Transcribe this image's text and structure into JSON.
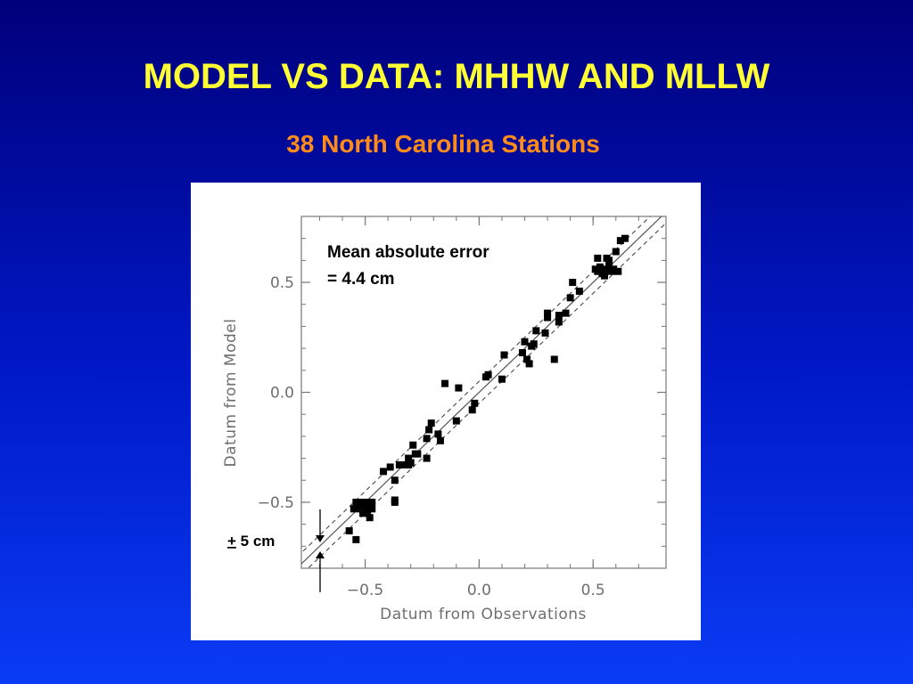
{
  "slide": {
    "title": "MODEL VS DATA: MHHW AND MLLW",
    "subtitle": "38 North Carolina Stations",
    "background_top": "#00007a",
    "background_bottom": "#0a3cf5",
    "title_color": "#ffff33",
    "subtitle_color": "#ff8c1a"
  },
  "chart_data": {
    "type": "scatter",
    "xlabel": "Datum from Observations",
    "ylabel": "Datum from Model",
    "xlim": [
      -0.78,
      0.82
    ],
    "ylim": [
      -0.8,
      0.8
    ],
    "xticks": [
      -0.5,
      0.0,
      0.5
    ],
    "yticks": [
      -0.5,
      0.0,
      0.5
    ],
    "xtick_labels": [
      "−0.5",
      "0.0",
      "0.5"
    ],
    "ytick_labels": [
      "−0.5",
      "0.0",
      "0.5"
    ],
    "grid": false,
    "annotation": {
      "line1": "Mean absolute error",
      "line2": "= 4.4 cm"
    },
    "band_label": {
      "sign": "+",
      "text": " 5 cm"
    },
    "reference_lines": {
      "one_to_one": true,
      "band_offset": 0.05
    },
    "points": [
      [
        -0.57,
        -0.63
      ],
      [
        -0.55,
        -0.53
      ],
      [
        -0.54,
        -0.67
      ],
      [
        -0.54,
        -0.5
      ],
      [
        -0.52,
        -0.5
      ],
      [
        -0.52,
        -0.53
      ],
      [
        -0.51,
        -0.55
      ],
      [
        -0.5,
        -0.51
      ],
      [
        -0.5,
        -0.54
      ],
      [
        -0.49,
        -0.5
      ],
      [
        -0.49,
        -0.55
      ],
      [
        -0.48,
        -0.52
      ],
      [
        -0.48,
        -0.57
      ],
      [
        -0.47,
        -0.5
      ],
      [
        -0.47,
        -0.53
      ],
      [
        -0.42,
        -0.36
      ],
      [
        -0.39,
        -0.34
      ],
      [
        -0.37,
        -0.4
      ],
      [
        -0.37,
        -0.49
      ],
      [
        -0.37,
        -0.5
      ],
      [
        -0.35,
        -0.33
      ],
      [
        -0.33,
        -0.33
      ],
      [
        -0.31,
        -0.3
      ],
      [
        -0.31,
        -0.33
      ],
      [
        -0.3,
        -0.32
      ],
      [
        -0.29,
        -0.24
      ],
      [
        -0.28,
        -0.28
      ],
      [
        -0.27,
        -0.28
      ],
      [
        -0.23,
        -0.3
      ],
      [
        -0.23,
        -0.21
      ],
      [
        -0.22,
        -0.17
      ],
      [
        -0.21,
        -0.14
      ],
      [
        -0.18,
        -0.19
      ],
      [
        -0.17,
        -0.22
      ],
      [
        -0.15,
        0.04
      ],
      [
        -0.1,
        -0.13
      ],
      [
        -0.09,
        0.02
      ],
      [
        -0.03,
        -0.08
      ],
      [
        -0.02,
        -0.05
      ],
      [
        0.03,
        0.07
      ],
      [
        0.04,
        0.08
      ],
      [
        0.1,
        0.06
      ],
      [
        0.11,
        0.17
      ],
      [
        0.19,
        0.18
      ],
      [
        0.2,
        0.23
      ],
      [
        0.21,
        0.15
      ],
      [
        0.22,
        0.13
      ],
      [
        0.23,
        0.21
      ],
      [
        0.24,
        0.22
      ],
      [
        0.25,
        0.28
      ],
      [
        0.29,
        0.27
      ],
      [
        0.3,
        0.34
      ],
      [
        0.3,
        0.36
      ],
      [
        0.33,
        0.15
      ],
      [
        0.35,
        0.32
      ],
      [
        0.35,
        0.35
      ],
      [
        0.38,
        0.36
      ],
      [
        0.4,
        0.43
      ],
      [
        0.41,
        0.5
      ],
      [
        0.44,
        0.46
      ],
      [
        0.51,
        0.56
      ],
      [
        0.52,
        0.61
      ],
      [
        0.52,
        0.55
      ],
      [
        0.53,
        0.57
      ],
      [
        0.54,
        0.54
      ],
      [
        0.55,
        0.56
      ],
      [
        0.55,
        0.53
      ],
      [
        0.56,
        0.61
      ],
      [
        0.57,
        0.6
      ],
      [
        0.57,
        0.57
      ],
      [
        0.58,
        0.55
      ],
      [
        0.59,
        0.56
      ],
      [
        0.6,
        0.64
      ],
      [
        0.61,
        0.55
      ],
      [
        0.62,
        0.69
      ],
      [
        0.64,
        0.7
      ]
    ]
  }
}
